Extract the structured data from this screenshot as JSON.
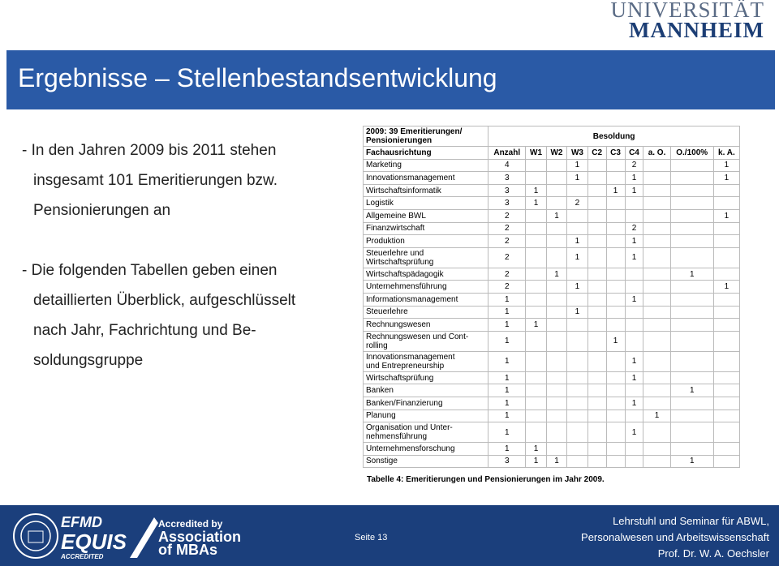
{
  "logo": {
    "line1": "UNIVERSITÄT",
    "line2": "MANNHEIM"
  },
  "header": {
    "title": "Ergebnisse – Stellenbestandsentwicklung"
  },
  "bullets": [
    [
      "- In den Jahren 2009 bis 2011 stehen",
      "insgesamt 101 Emeritierungen bzw.",
      "Pensionierungen an"
    ],
    [
      "- Die folgenden Tabellen geben einen",
      "detaillierten Überblick, aufgeschlüsselt",
      "nach Jahr, Fachrichtung und Be-",
      "soldungsgruppe"
    ]
  ],
  "table": {
    "corner": "2009: 39 Emeritierungen/\nPensionierungen",
    "group": "Besoldung",
    "columns": [
      "Fachausrichtung",
      "Anzahl",
      "W1",
      "W2",
      "W3",
      "C2",
      "C3",
      "C4",
      "a. O.",
      "O./100%",
      "k. A."
    ],
    "rows": [
      {
        "name": "Marketing",
        "cells": {
          "1": 4,
          "4": 1,
          "7": 2,
          "10": 1
        }
      },
      {
        "name": "Innovationsmanagement",
        "cells": {
          "1": 3,
          "4": 1,
          "7": 1,
          "10": 1
        }
      },
      {
        "name": "Wirtschaftsinformatik",
        "cells": {
          "1": 3,
          "2": 1,
          "6": 1,
          "7": 1
        }
      },
      {
        "name": "Logistik",
        "cells": {
          "1": 3,
          "2": 1,
          "4": 2
        }
      },
      {
        "name": "Allgemeine BWL",
        "cells": {
          "1": 2,
          "3": 1,
          "10": 1
        }
      },
      {
        "name": "Finanzwirtschaft",
        "cells": {
          "1": 2,
          "7": 2
        }
      },
      {
        "name": "Produktion",
        "cells": {
          "1": 2,
          "4": 1,
          "7": 1
        }
      },
      {
        "name": "Steuerlehre und\nWirtschaftsprüfung",
        "cells": {
          "1": 2,
          "4": 1,
          "7": 1
        }
      },
      {
        "name": "Wirtschaftspädagogik",
        "cells": {
          "1": 2,
          "3": 1,
          "9": 1
        }
      },
      {
        "name": "Unternehmensführung",
        "cells": {
          "1": 2,
          "4": 1,
          "10": 1
        }
      },
      {
        "name": "Informationsmanagement",
        "cells": {
          "1": 1,
          "7": 1
        }
      },
      {
        "name": "Steuerlehre",
        "cells": {
          "1": 1,
          "4": 1
        }
      },
      {
        "name": "Rechnungswesen",
        "cells": {
          "1": 1,
          "2": 1
        }
      },
      {
        "name": "Rechnungswesen und Cont-\nrolling",
        "cells": {
          "1": 1,
          "6": 1
        }
      },
      {
        "name": "Innovationsmanagement\nund Entrepreneurship",
        "cells": {
          "1": 1,
          "7": 1
        }
      },
      {
        "name": "Wirtschaftsprüfung",
        "cells": {
          "1": 1,
          "7": 1
        }
      },
      {
        "name": "Banken",
        "cells": {
          "1": 1,
          "9": 1
        }
      },
      {
        "name": "Banken/Finanzierung",
        "cells": {
          "1": 1,
          "7": 1
        }
      },
      {
        "name": "Planung",
        "cells": {
          "1": 1,
          "8": 1
        }
      },
      {
        "name": "Organisation und Unter-\nnehmensführung",
        "cells": {
          "1": 1,
          "7": 1
        }
      },
      {
        "name": "Unternehmensforschung",
        "cells": {
          "1": 1,
          "2": 1
        }
      },
      {
        "name": "Sonstige",
        "cells": {
          "1": 3,
          "2": 1,
          "3": 1,
          "9": 1
        }
      }
    ],
    "caption": "Tabelle 4: Emeritierungen und Pensionierungen im Jahr 2009."
  },
  "footer": {
    "equis": [
      "EFMD",
      "EQUIS",
      "ACCREDITED"
    ],
    "amba": [
      "Accredited by",
      "Association",
      "of MBAs"
    ],
    "page": "Seite 13",
    "chair": [
      "Lehrstuhl und Seminar für ABWL,",
      "Personalwesen und Arbeitswissenschaft",
      "Prof. Dr. W. A. Oechsler"
    ]
  }
}
